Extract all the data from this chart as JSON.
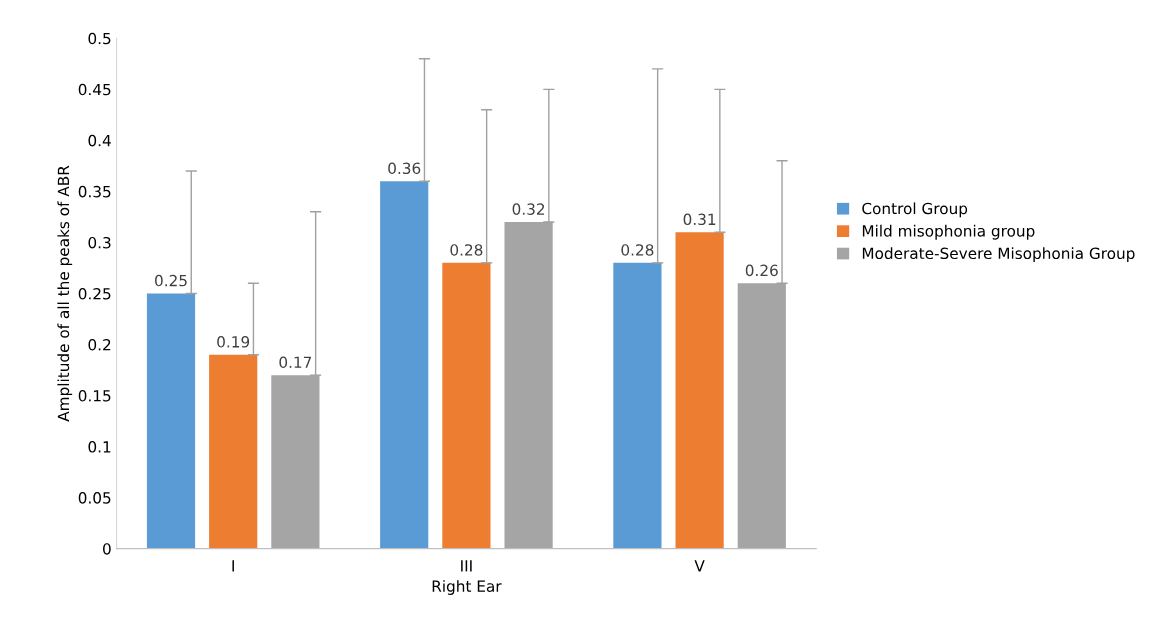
{
  "chart_data": {
    "type": "bar",
    "categories": [
      "I",
      "III",
      "V"
    ],
    "xlabel": "Right Ear",
    "ylabel": "Amplitude of all the peaks of ABR",
    "ylim": [
      0,
      0.5
    ],
    "yticks": [
      {
        "value": 0,
        "label": "0"
      },
      {
        "value": 0.05,
        "label": "0.05"
      },
      {
        "value": 0.1,
        "label": "0.1"
      },
      {
        "value": 0.15,
        "label": "0.15"
      },
      {
        "value": 0.2,
        "label": "0.2"
      },
      {
        "value": 0.25,
        "label": "0.25"
      },
      {
        "value": 0.3,
        "label": "0.3"
      },
      {
        "value": 0.35,
        "label": "0.35"
      },
      {
        "value": 0.4,
        "label": "0.4"
      },
      {
        "value": 0.45,
        "label": "0.45"
      },
      {
        "value": 0.5,
        "label": "0.5"
      }
    ],
    "series": [
      {
        "name": "Control Group",
        "color": "#5b9bd5",
        "values": [
          0.25,
          0.36,
          0.28
        ],
        "errors": [
          [
            0.25,
            0.37
          ],
          [
            0.36,
            0.48
          ],
          [
            0.28,
            0.47
          ]
        ]
      },
      {
        "name": "Mild misophonia group",
        "color": "#ed7d31",
        "values": [
          0.19,
          0.28,
          0.31
        ],
        "errors": [
          [
            0.19,
            0.26
          ],
          [
            0.28,
            0.43
          ],
          [
            0.31,
            0.45
          ]
        ]
      },
      {
        "name": "Moderate-Severe Misophonia Group",
        "color": "#a5a5a5",
        "values": [
          0.17,
          0.32,
          0.26
        ],
        "errors": [
          [
            0.17,
            0.33
          ],
          [
            0.32,
            0.45
          ],
          [
            0.26,
            0.38
          ]
        ]
      }
    ],
    "data_labels": true,
    "grid": false,
    "legend": "right"
  }
}
